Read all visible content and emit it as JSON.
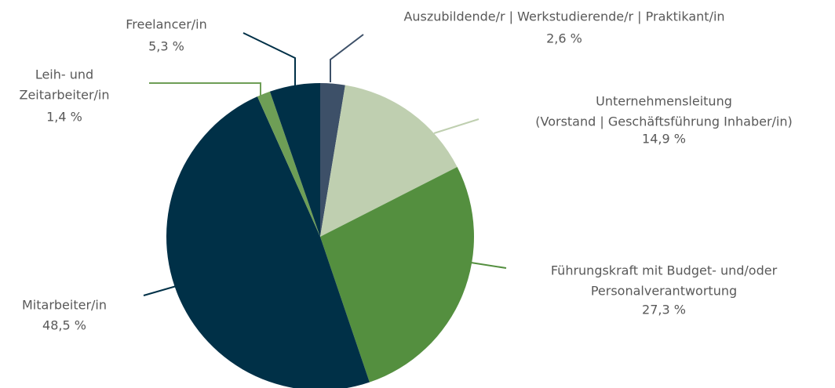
{
  "chart_data": {
    "type": "pie",
    "categories": [
      [
        "Auszubildende/r | Werkstudierende/r | Praktikant/in"
      ],
      [
        "Unternehmensleitung",
        "(Vorstand | Geschäftsführung Inhaber/in)"
      ],
      [
        "Führungskraft mit Budget- und/oder",
        "Personalverantwortung"
      ],
      [
        "Mitarbeiter/in"
      ],
      [
        "Leih- und",
        "Zeitarbeiter/in"
      ],
      [
        "Freelancer/in"
      ]
    ],
    "values": [
      2.6,
      14.9,
      27.3,
      48.5,
      1.4,
      5.3
    ],
    "value_labels": [
      "2,6 %",
      "14,9 %",
      "27,3 %",
      "48,5 %",
      "1,4 %",
      "5,3 %"
    ],
    "colors": [
      "#3d5068",
      "#bfcfb0",
      "#548f3f",
      "#003047",
      "#6e9e56",
      "#003047"
    ]
  }
}
